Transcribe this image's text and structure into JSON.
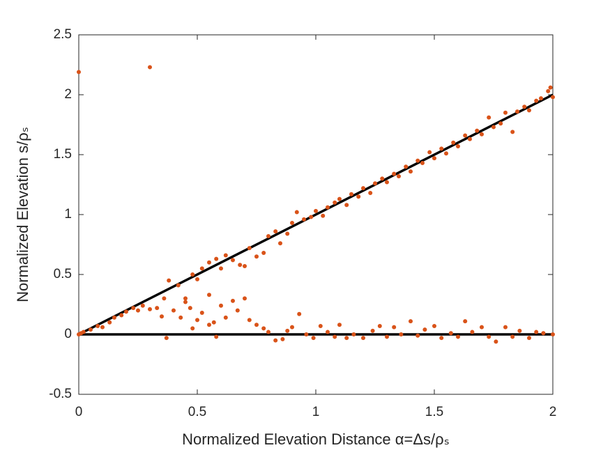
{
  "chart_data": {
    "type": "scatter",
    "xlabel": "Normalized Elevation Distance α=Δs/ρₛ",
    "ylabel": "Normalized Elevation s/ρₛ",
    "xlim": [
      0,
      2
    ],
    "ylim": [
      -0.5,
      2.5
    ],
    "xticks": [
      0,
      0.5,
      1,
      1.5,
      2
    ],
    "yticks": [
      -0.5,
      0,
      0.5,
      1,
      1.5,
      2,
      2.5
    ],
    "color": "#d95319",
    "x": [
      0,
      0.01,
      0,
      0.3,
      0.02,
      0.05,
      0.08,
      0.1,
      0.13,
      0.15,
      0.18,
      0.2,
      0.23,
      0.25,
      0.27,
      0.3,
      0.33,
      0.36,
      0.38,
      0.42,
      0.45,
      0.48,
      0.5,
      0.52,
      0.55,
      0.58,
      0.6,
      0.62,
      0.65,
      0.68,
      0.7,
      0.72,
      0.75,
      0.78,
      0.8,
      0.83,
      0.85,
      0.88,
      0.9,
      0.92,
      0.95,
      0.98,
      1.0,
      1.03,
      1.05,
      1.08,
      1.1,
      1.13,
      1.15,
      1.18,
      1.2,
      1.23,
      1.25,
      1.28,
      1.3,
      1.33,
      1.35,
      1.38,
      1.4,
      1.43,
      1.45,
      1.48,
      1.5,
      1.53,
      1.55,
      1.58,
      1.6,
      1.63,
      1.65,
      1.68,
      1.7,
      1.73,
      1.75,
      1.78,
      1.8,
      1.83,
      1.85,
      1.88,
      1.9,
      1.93,
      1.95,
      1.98,
      2.0,
      1.99,
      0.35,
      0.4,
      0.43,
      0.45,
      0.47,
      0.5,
      0.52,
      0.55,
      0.57,
      0.6,
      0.62,
      0.65,
      0.67,
      0.7,
      0.72,
      0.55,
      0.37,
      0.58,
      0.48,
      0.75,
      0.78,
      0.8,
      0.83,
      0.86,
      0.88,
      0.9,
      0.93,
      0.96,
      0.99,
      1.02,
      1.05,
      1.08,
      1.1,
      1.13,
      1.16,
      1.2,
      1.24,
      1.27,
      1.3,
      1.33,
      1.36,
      1.4,
      1.43,
      1.46,
      1.5,
      1.53,
      1.57,
      1.6,
      1.63,
      1.66,
      1.7,
      1.73,
      1.76,
      1.8,
      1.83,
      1.86,
      1.9,
      1.93,
      1.96,
      2.0
    ],
    "values": [
      0,
      0.01,
      2.19,
      2.23,
      0.02,
      0.04,
      0.07,
      0.06,
      0.1,
      0.14,
      0.16,
      0.19,
      0.22,
      0.2,
      0.24,
      0.21,
      0.22,
      0.3,
      0.45,
      0.41,
      0.3,
      0.5,
      0.46,
      0.55,
      0.6,
      0.63,
      0.55,
      0.66,
      0.62,
      0.58,
      0.57,
      0.72,
      0.65,
      0.68,
      0.82,
      0.86,
      0.76,
      0.84,
      0.93,
      1.02,
      0.96,
      0.98,
      1.03,
      0.99,
      1.06,
      1.1,
      1.13,
      1.08,
      1.17,
      1.15,
      1.22,
      1.18,
      1.26,
      1.3,
      1.27,
      1.34,
      1.32,
      1.4,
      1.36,
      1.45,
      1.43,
      1.52,
      1.47,
      1.55,
      1.51,
      1.6,
      1.57,
      1.66,
      1.63,
      1.7,
      1.67,
      1.81,
      1.73,
      1.76,
      1.85,
      1.69,
      1.86,
      1.9,
      1.87,
      1.95,
      1.97,
      2.03,
      1.98,
      2.06,
      0.15,
      0.2,
      0.14,
      0.27,
      0.22,
      0.12,
      0.18,
      0.33,
      0.1,
      0.24,
      0.14,
      0.28,
      0.2,
      0.3,
      0.12,
      0.08,
      -0.03,
      -0.02,
      0.05,
      0.08,
      0.05,
      0.02,
      -0.05,
      -0.04,
      0.03,
      0.06,
      0.17,
      0,
      -0.03,
      0.07,
      0.02,
      -0.02,
      0.08,
      -0.03,
      0,
      -0.03,
      0.03,
      0.07,
      -0.02,
      0.06,
      0,
      0.11,
      -0.01,
      0.04,
      0.07,
      -0.03,
      0.01,
      -0.02,
      0.11,
      0.02,
      0.06,
      -0.02,
      -0.06,
      0.06,
      -0.02,
      0.03,
      -0.03,
      0.02,
      0.01,
      0
    ],
    "lines": [
      {
        "x": [
          0,
          2
        ],
        "values": [
          0,
          2
        ],
        "color": "#000000"
      },
      {
        "x": [
          0,
          2
        ],
        "values": [
          0,
          0
        ],
        "color": "#000000"
      }
    ]
  }
}
